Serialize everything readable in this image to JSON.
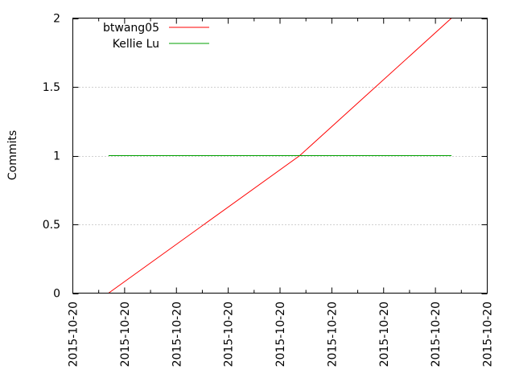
{
  "chart_data": {
    "type": "line",
    "title": "",
    "xlabel": "",
    "ylabel": "Commits",
    "ylim": [
      0,
      2
    ],
    "y_ticks": [
      0,
      0.5,
      1,
      1.5,
      2
    ],
    "y_tick_labels": [
      "0",
      "0.5",
      "1",
      "1.5",
      "2"
    ],
    "x_tick_labels": [
      "2015-10-20",
      "2015-10-20",
      "2015-10-20",
      "2015-10-20",
      "2015-10-20",
      "2015-10-20",
      "2015-10-20",
      "2015-10-20",
      "2015-10-20"
    ],
    "x_tick_count": 9,
    "x_minor_ticks": true,
    "grid": {
      "horizontal": true,
      "style": "dotted",
      "color": "#a0a0a0"
    },
    "legend": {
      "placement": "top-left"
    },
    "series": [
      {
        "name": "btwang05",
        "color": "#ff0000",
        "points": [
          {
            "x_tick_position": 0.69,
            "y": 0
          },
          {
            "x_tick_position": 4.38,
            "y": 1
          },
          {
            "x_tick_position": 7.31,
            "y": 2
          }
        ]
      },
      {
        "name": "Kellie Lu",
        "color": "#00a000",
        "points": [
          {
            "x_tick_position": 0.69,
            "y": 1
          },
          {
            "x_tick_position": 7.31,
            "y": 1
          }
        ]
      }
    ]
  }
}
